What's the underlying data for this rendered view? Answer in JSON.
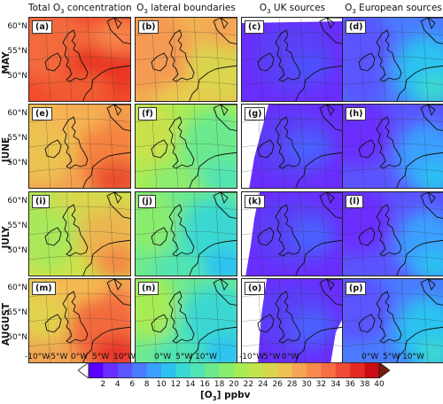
{
  "columns": [
    {
      "pre": "Total O",
      "sub": "3",
      "post": " concentration"
    },
    {
      "pre": "O",
      "sub": "3",
      "post": " lateral boundaries"
    },
    {
      "pre": "O",
      "sub": "3",
      "post": " UK sources"
    },
    {
      "pre": "O",
      "sub": "3",
      "post": " European sources"
    }
  ],
  "rows": [
    "MAY",
    "JUNE",
    "JULY",
    "AUGUST"
  ],
  "panel_labels": [
    "(a)",
    "(b)",
    "(c)",
    "(d)",
    "(e)",
    "(f)",
    "(g)",
    "(h)",
    "(i)",
    "(j)",
    "(k)",
    "(l)",
    "(m)",
    "(n)",
    "(o)",
    "(p)"
  ],
  "lat_labels": [
    "60°N",
    "55°N",
    "50°N"
  ],
  "lon_labels_total": [
    "-10°W",
    "-5°W",
    "0°W",
    "5°W",
    "10°W"
  ],
  "lon_labels_other": [
    "-10°W",
    "-5°W",
    "0°W",
    "5°W",
    "10°W"
  ],
  "colorbar": {
    "ticks": [
      "2",
      "4",
      "6",
      "8",
      "10",
      "12",
      "14",
      "16",
      "18",
      "20",
      "22",
      "24",
      "26",
      "28",
      "30",
      "32",
      "34",
      "36",
      "38",
      "40"
    ],
    "colors": [
      "#5a00ff",
      "#6a2dff",
      "#5a55ff",
      "#4a7cff",
      "#3aa0ff",
      "#2bc2f0",
      "#3ad8d2",
      "#4fe4b4",
      "#6ce98f",
      "#8aec6e",
      "#a7ec55",
      "#c2e44c",
      "#d9d64d",
      "#ecc251",
      "#f6a553",
      "#f98a4e",
      "#f76d44",
      "#f04b35",
      "#e32a24",
      "#cc0c14"
    ],
    "title_pre": "[O",
    "title_sub": "3",
    "title_post": "] ppbv"
  },
  "panel_scheme": {
    "a": "total_may",
    "b": "lat_may",
    "c": "uk_may",
    "d": "eu_may",
    "e": "total_jun",
    "f": "lat_jun",
    "g": "uk_jun",
    "h": "eu_jun",
    "i": "total_jul",
    "j": "lat_jul",
    "k": "uk_jul",
    "l": "eu_jul",
    "m": "total_aug",
    "n": "lat_aug",
    "o": "uk_aug",
    "p": "eu_aug"
  }
}
